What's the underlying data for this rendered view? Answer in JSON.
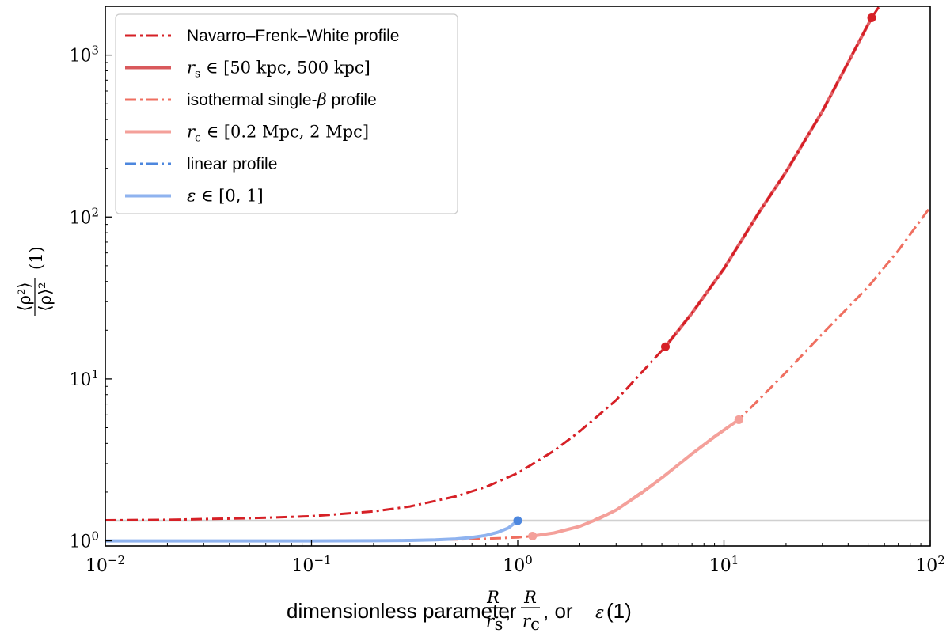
{
  "chart_data": {
    "type": "line",
    "title": "",
    "xscale": "log",
    "yscale": "log",
    "xlim": [
      0.01,
      100
    ],
    "ylim": [
      0.93,
      2000
    ],
    "xlabel": "dimensionless parameter R/rs, R/rc, or ε (1)",
    "xlabel_parts": {
      "lead": "dimensionless parameter ",
      "frac1_num": "R",
      "frac1_den": "r",
      "frac1_den_sub": "s",
      "sep": ", ",
      "frac2_num": "R",
      "frac2_den": "r",
      "frac2_den_sub": "c",
      "tail1": ", or ",
      "eps": "ε",
      "tail2": " (1)"
    },
    "ylabel": "⟨ρ²⟩ / ⟨ρ⟩² (1)",
    "ylabel_parts": {
      "num": "⟨ρ²⟩",
      "den": "⟨ρ⟩²",
      "unit": "(1)"
    },
    "x_ticks": [
      {
        "value": 0.01,
        "base": "10",
        "exp": "−2"
      },
      {
        "value": 0.1,
        "base": "10",
        "exp": "−1"
      },
      {
        "value": 1,
        "base": "10",
        "exp": "0"
      },
      {
        "value": 10,
        "base": "10",
        "exp": "1"
      },
      {
        "value": 100,
        "base": "10",
        "exp": "2"
      }
    ],
    "y_ticks": [
      {
        "value": 1,
        "base": "10",
        "exp": "0"
      },
      {
        "value": 10,
        "base": "10",
        "exp": "1"
      },
      {
        "value": 100,
        "base": "10",
        "exp": "2"
      },
      {
        "value": 1000,
        "base": "10",
        "exp": "3"
      }
    ],
    "reference_line": {
      "y": 1.333,
      "color": "#d0d0d0"
    },
    "series": [
      {
        "name": "Navarro–Frenk–White profile",
        "style": "dashdot",
        "color": "#d62026",
        "x": [
          0.01,
          0.02,
          0.05,
          0.1,
          0.2,
          0.3,
          0.5,
          0.7,
          1.0,
          1.5,
          2.0,
          3.0,
          5.2,
          7.0,
          10.0,
          15.0,
          20.0,
          30.0,
          52.0,
          65.0
        ],
        "y": [
          1.34,
          1.35,
          1.38,
          1.42,
          1.52,
          1.63,
          1.88,
          2.15,
          2.62,
          3.6,
          4.75,
          7.4,
          15.8,
          25.5,
          48.0,
          110.0,
          190.0,
          450.0,
          1700.0,
          2600.0
        ]
      },
      {
        "name": "rs ∈ [50 kpc, 500 kpc]",
        "legend_math": {
          "var": "r",
          "sub": "s",
          "rest": " ∈ [50 kpc, 500 kpc]"
        },
        "style": "solid",
        "color": "#d62026",
        "opacity": 0.7,
        "x": [
          5.2,
          7.0,
          10.0,
          15.0,
          20.0,
          30.0,
          40.0,
          52.0
        ],
        "y": [
          15.8,
          25.5,
          48.0,
          110.0,
          190.0,
          450.0,
          900.0,
          1700.0
        ],
        "endpoints": [
          [
            5.2,
            15.8
          ],
          [
            52.0,
            1700.0
          ]
        ]
      },
      {
        "name": "isothermal single-β profile",
        "legend_math": {
          "lead": "isothermal single-",
          "var": "β",
          "rest": " profile"
        },
        "style": "dashdot",
        "color": "#ef6f60",
        "x": [
          0.01,
          0.05,
          0.1,
          0.2,
          0.3,
          0.5,
          0.7,
          1.0,
          1.18,
          1.5,
          2.0,
          3.0,
          5.0,
          7.0,
          11.8,
          15.0,
          20.0,
          30.0,
          50.0,
          70.0,
          100.0
        ],
        "y": [
          1.0,
          1.0,
          1.0,
          1.0,
          1.01,
          1.02,
          1.03,
          1.05,
          1.07,
          1.12,
          1.23,
          1.55,
          2.45,
          3.45,
          5.6,
          7.6,
          11.0,
          19.0,
          37.0,
          62.0,
          115.0
        ]
      },
      {
        "name": "rc ∈ [0.2 Mpc, 2 Mpc]",
        "legend_math": {
          "var": "r",
          "sub": "c",
          "rest": " ∈ [0.2 Mpc, 2 Mpc]"
        },
        "style": "solid",
        "color": "#f4a09a",
        "x": [
          1.18,
          1.5,
          2.0,
          2.5,
          3.0,
          4.0,
          5.0,
          7.0,
          9.0,
          11.8
        ],
        "y": [
          1.07,
          1.12,
          1.23,
          1.38,
          1.55,
          1.98,
          2.45,
          3.45,
          4.4,
          5.6
        ],
        "endpoints": [
          [
            1.18,
            1.07
          ],
          [
            11.8,
            5.6
          ]
        ]
      },
      {
        "name": "linear profile",
        "style": "dashdot",
        "color": "#4d87de",
        "x": [
          0.01,
          0.05,
          0.1,
          0.2,
          0.3,
          0.4,
          0.5,
          0.6,
          0.7,
          0.8,
          0.9,
          1.0
        ],
        "y": [
          1.0,
          1.0,
          1.0,
          1.002,
          1.006,
          1.014,
          1.028,
          1.05,
          1.08,
          1.13,
          1.2,
          1.333
        ]
      },
      {
        "name": "ε ∈ [0, 1]",
        "legend_math": {
          "var": "ε",
          "rest": " ∈ [0, 1]"
        },
        "style": "solid",
        "color": "#8fb3ef",
        "x": [
          0.01,
          0.05,
          0.1,
          0.2,
          0.3,
          0.4,
          0.5,
          0.6,
          0.7,
          0.8,
          0.9,
          1.0
        ],
        "y": [
          1.0,
          1.0,
          1.0,
          1.002,
          1.006,
          1.014,
          1.028,
          1.05,
          1.08,
          1.13,
          1.2,
          1.333
        ],
        "endpoints": [
          [
            1.0,
            1.333
          ]
        ],
        "endpoint_color": "#4d87de"
      }
    ],
    "legend": {
      "placement": "top-left",
      "entries": [
        {
          "label": "Navarro–Frenk–White profile",
          "style": "dashdot",
          "color": "#d62026"
        },
        {
          "label_math": {
            "var": "r",
            "sub": "s",
            "rest": " ∈ [50 kpc, 500 kpc]"
          },
          "style": "solid",
          "color": "#d9595c"
        },
        {
          "label_math": {
            "lead": "isothermal single-",
            "var": "β",
            "rest": " profile"
          },
          "style": "dashdot",
          "color": "#ef6f60"
        },
        {
          "label_math": {
            "var": "r",
            "sub": "c",
            "rest": " ∈ [0.2 Mpc, 2 Mpc]"
          },
          "style": "solid",
          "color": "#f4a09a"
        },
        {
          "label": "linear profile",
          "style": "dashdot",
          "color": "#4d87de"
        },
        {
          "label_math": {
            "var": "ε",
            "rest": " ∈ [0, 1]"
          },
          "style": "solid",
          "color": "#8fb3ef"
        }
      ]
    },
    "grid": false
  }
}
